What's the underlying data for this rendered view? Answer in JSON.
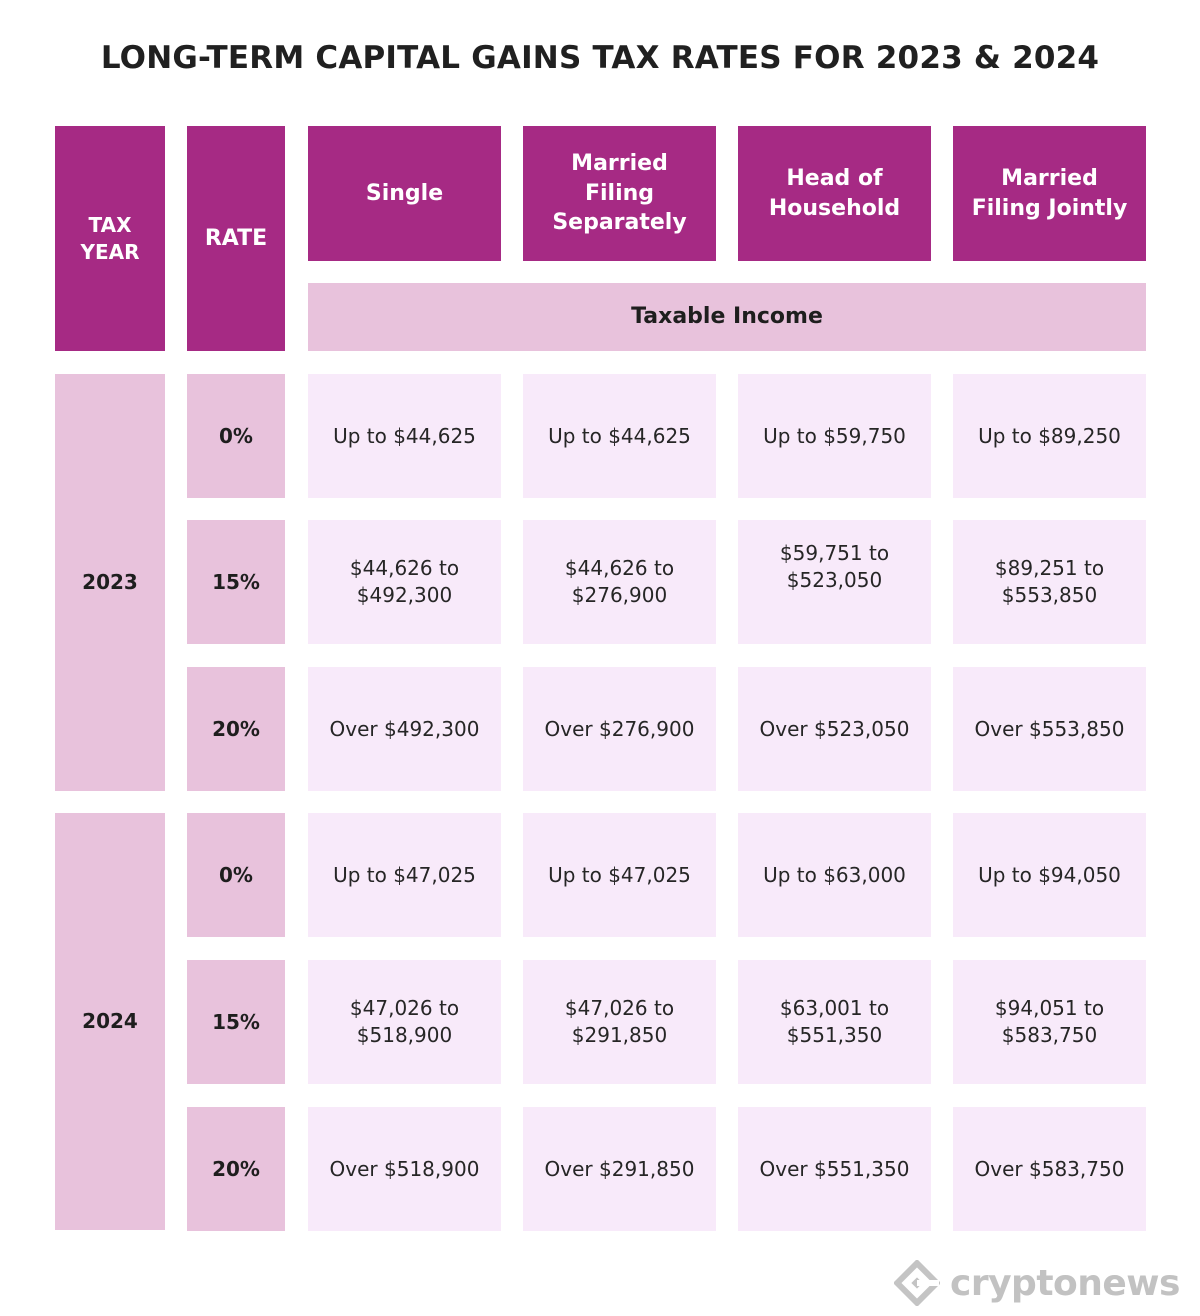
{
  "title": "LONG-TERM CAPITAL GAINS TAX RATES FOR 2023 & 2024",
  "header": {
    "tax_year": "TAX YEAR",
    "rate": "RATE",
    "columns": [
      "Single",
      "Married Filing Separately",
      "Head of Household",
      "Married Filing Jointly"
    ],
    "taxable_income": "Taxable Income"
  },
  "years": [
    {
      "year": "2023",
      "rows": [
        {
          "rate": "0%",
          "values": [
            "Up to $44,625",
            "Up to $44,625",
            "Up to $59,750",
            "Up to $89,250"
          ]
        },
        {
          "rate": "15%",
          "values": [
            "$44,626 to $492,300",
            "$44,626 to $276,900",
            "$59,751 to $523,050",
            "$89,251 to $553,850"
          ]
        },
        {
          "rate": "20%",
          "values": [
            "Over $492,300",
            "Over $276,900",
            "Over $523,050",
            "Over $553,850"
          ]
        }
      ]
    },
    {
      "year": "2024",
      "rows": [
        {
          "rate": "0%",
          "values": [
            "Up to $47,025",
            "Up to $47,025",
            "Up to $63,000",
            "Up to $94,050"
          ]
        },
        {
          "rate": "15%",
          "values": [
            "$47,026 to $518,900",
            "$47,026 to $291,850",
            "$63,001 to $551,350",
            "$94,051 to $583,750"
          ]
        },
        {
          "rate": "20%",
          "values": [
            "Over $518,900",
            "Over $291,850",
            "Over $551,350",
            "Over $583,750"
          ]
        }
      ]
    }
  ],
  "logo": {
    "text": "cryptonews",
    "icon": "cryptonews-logo-icon"
  },
  "colors": {
    "header": "#a62a84",
    "accent_light": "#e8c2dc",
    "value_bg": "#f8eafa"
  }
}
